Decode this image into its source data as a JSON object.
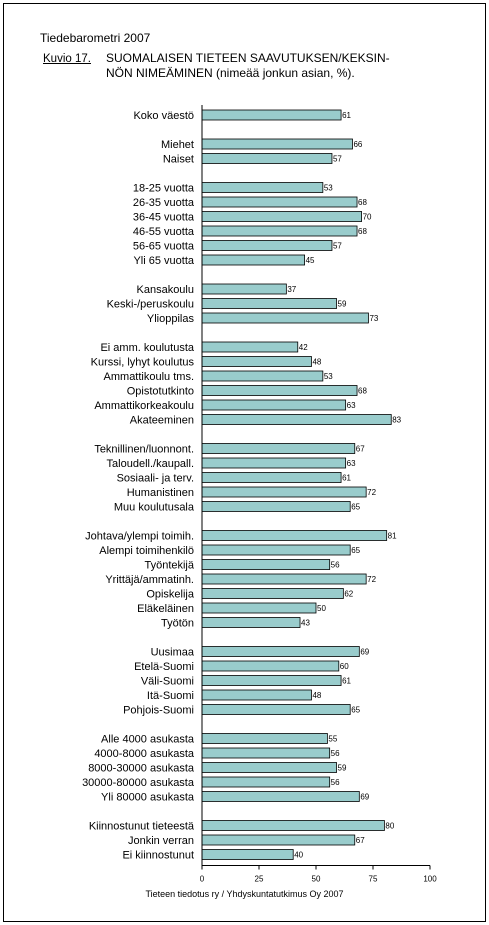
{
  "header": {
    "report": "Tiedebarometri 2007",
    "figure_label": "Kuvio 17.",
    "title_line1": "SUOMALAISEN TIETEEN SAAVUTUKSEN/KEKSIN-",
    "title_line2": "NÖN NIMEÄMINEN (nimeää jonkun asian, %)."
  },
  "source": "Tieteen tiedotus ry / Yhdyskuntatutkimus Oy 2007",
  "colors": {
    "bar_fill": "#99cccc",
    "bar_stroke": "#000000"
  },
  "chart_data": {
    "type": "bar",
    "orientation": "horizontal",
    "xlim": [
      0,
      100
    ],
    "xticks": [
      0,
      25,
      50,
      75,
      100
    ],
    "groups": [
      {
        "categories": [
          "Koko väestö"
        ],
        "values": [
          61
        ]
      },
      {
        "categories": [
          "Miehet",
          "Naiset"
        ],
        "values": [
          66,
          57
        ]
      },
      {
        "categories": [
          "18-25 vuotta",
          "26-35 vuotta",
          "36-45 vuotta",
          "46-55 vuotta",
          "56-65 vuotta",
          "Yli 65 vuotta"
        ],
        "values": [
          53,
          68,
          70,
          68,
          57,
          45
        ]
      },
      {
        "categories": [
          "Kansakoulu",
          "Keski-/peruskoulu",
          "Ylioppilas"
        ],
        "values": [
          37,
          59,
          73
        ]
      },
      {
        "categories": [
          "Ei amm. koulutusta",
          "Kurssi, lyhyt koulutus",
          "Ammattikoulu tms.",
          "Opistotutkinto",
          "Ammattikorkeakoulu",
          "Akateeminen"
        ],
        "values": [
          42,
          48,
          53,
          68,
          63,
          83
        ]
      },
      {
        "categories": [
          "Teknillinen/luonnont.",
          "Taloudell./kaupall.",
          "Sosiaali- ja terv.",
          "Humanistinen",
          "Muu koulutusala"
        ],
        "values": [
          67,
          63,
          61,
          72,
          65
        ]
      },
      {
        "categories": [
          "Johtava/ylempi toimih.",
          "Alempi toimihenkilö",
          "Työntekijä",
          "Yrittäjä/ammatinh.",
          "Opiskelija",
          "Eläkeläinen",
          "Työtön"
        ],
        "values": [
          81,
          65,
          56,
          72,
          62,
          50,
          43
        ]
      },
      {
        "categories": [
          "Uusimaa",
          "Etelä-Suomi",
          "Väli-Suomi",
          "Itä-Suomi",
          "Pohjois-Suomi"
        ],
        "values": [
          69,
          60,
          61,
          48,
          65
        ]
      },
      {
        "categories": [
          "Alle 4000 asukasta",
          "4000-8000 asukasta",
          "8000-30000 asukasta",
          "30000-80000 asukasta",
          "Yli 80000 asukasta"
        ],
        "values": [
          55,
          56,
          59,
          56,
          69
        ]
      },
      {
        "categories": [
          "Kiinnostunut tieteestä",
          "Jonkin verran",
          "Ei kiinnostunut"
        ],
        "values": [
          80,
          67,
          40
        ]
      }
    ]
  }
}
